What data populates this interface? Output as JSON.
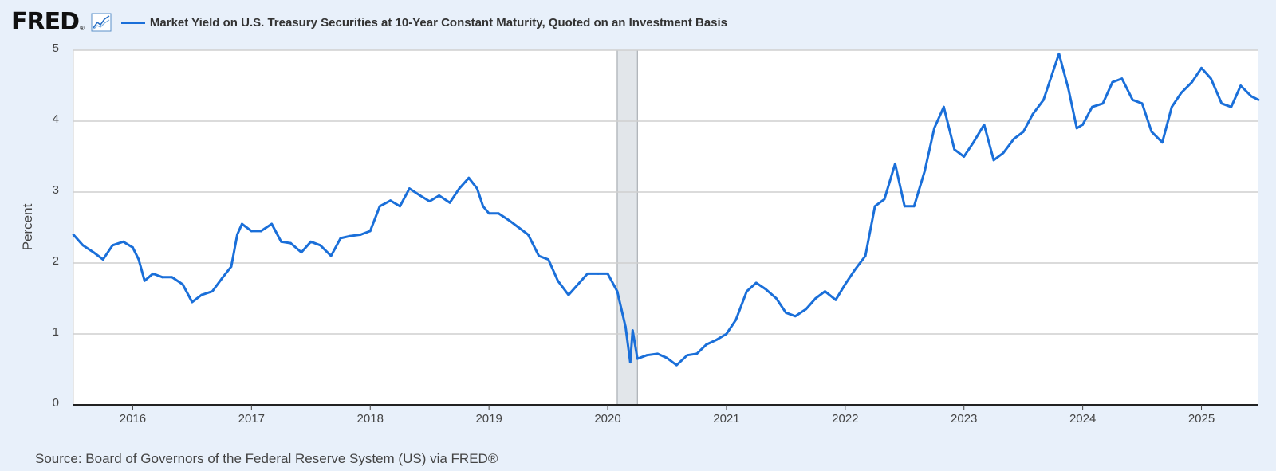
{
  "brand": {
    "logo": "FRED",
    "registered": "®",
    "icon": "line-chart-icon"
  },
  "chart_data": {
    "type": "line",
    "title": "Market Yield on U.S. Treasury Securities at 10-Year Constant Maturity, Quoted on an Investment Basis",
    "xlabel": "",
    "ylabel": "Percent",
    "xlim": [
      2015.5,
      2025.48
    ],
    "ylim": [
      0,
      5
    ],
    "yticks": [
      "0",
      "1",
      "2",
      "3",
      "4",
      "5"
    ],
    "xticks": [
      "2016",
      "2017",
      "2018",
      "2019",
      "2020",
      "2021",
      "2022",
      "2023",
      "2024",
      "2025"
    ],
    "grid": true,
    "legend": "top-left",
    "recession_shading": [
      {
        "start": 2020.08,
        "end": 2020.25
      }
    ],
    "series": [
      {
        "name": "Market Yield on U.S. Treasury Securities at 10-Year Constant Maturity, Quoted on an Investment Basis",
        "color": "#1a6fd9",
        "points": [
          [
            2015.5,
            2.4
          ],
          [
            2015.58,
            2.25
          ],
          [
            2015.67,
            2.15
          ],
          [
            2015.75,
            2.05
          ],
          [
            2015.83,
            2.25
          ],
          [
            2015.92,
            2.3
          ],
          [
            2016.0,
            2.22
          ],
          [
            2016.05,
            2.05
          ],
          [
            2016.1,
            1.75
          ],
          [
            2016.17,
            1.85
          ],
          [
            2016.25,
            1.8
          ],
          [
            2016.33,
            1.8
          ],
          [
            2016.42,
            1.7
          ],
          [
            2016.5,
            1.45
          ],
          [
            2016.58,
            1.55
          ],
          [
            2016.67,
            1.6
          ],
          [
            2016.75,
            1.78
          ],
          [
            2016.83,
            1.95
          ],
          [
            2016.88,
            2.4
          ],
          [
            2016.92,
            2.55
          ],
          [
            2017.0,
            2.45
          ],
          [
            2017.08,
            2.45
          ],
          [
            2017.17,
            2.55
          ],
          [
            2017.25,
            2.3
          ],
          [
            2017.33,
            2.28
          ],
          [
            2017.42,
            2.15
          ],
          [
            2017.5,
            2.3
          ],
          [
            2017.58,
            2.25
          ],
          [
            2017.67,
            2.1
          ],
          [
            2017.75,
            2.35
          ],
          [
            2017.83,
            2.38
          ],
          [
            2017.92,
            2.4
          ],
          [
            2018.0,
            2.45
          ],
          [
            2018.08,
            2.8
          ],
          [
            2018.17,
            2.88
          ],
          [
            2018.25,
            2.8
          ],
          [
            2018.33,
            3.05
          ],
          [
            2018.42,
            2.95
          ],
          [
            2018.5,
            2.87
          ],
          [
            2018.58,
            2.95
          ],
          [
            2018.67,
            2.85
          ],
          [
            2018.75,
            3.05
          ],
          [
            2018.83,
            3.2
          ],
          [
            2018.9,
            3.05
          ],
          [
            2018.95,
            2.8
          ],
          [
            2019.0,
            2.7
          ],
          [
            2019.08,
            2.7
          ],
          [
            2019.17,
            2.6
          ],
          [
            2019.25,
            2.5
          ],
          [
            2019.33,
            2.4
          ],
          [
            2019.42,
            2.1
          ],
          [
            2019.5,
            2.05
          ],
          [
            2019.58,
            1.75
          ],
          [
            2019.67,
            1.55
          ],
          [
            2019.75,
            1.7
          ],
          [
            2019.83,
            1.85
          ],
          [
            2019.92,
            1.85
          ],
          [
            2020.0,
            1.85
          ],
          [
            2020.08,
            1.6
          ],
          [
            2020.15,
            1.1
          ],
          [
            2020.19,
            0.6
          ],
          [
            2020.21,
            1.05
          ],
          [
            2020.25,
            0.65
          ],
          [
            2020.33,
            0.7
          ],
          [
            2020.42,
            0.72
          ],
          [
            2020.5,
            0.66
          ],
          [
            2020.58,
            0.56
          ],
          [
            2020.67,
            0.7
          ],
          [
            2020.75,
            0.72
          ],
          [
            2020.83,
            0.85
          ],
          [
            2020.92,
            0.92
          ],
          [
            2021.0,
            1.0
          ],
          [
            2021.08,
            1.2
          ],
          [
            2021.17,
            1.6
          ],
          [
            2021.25,
            1.72
          ],
          [
            2021.33,
            1.63
          ],
          [
            2021.42,
            1.5
          ],
          [
            2021.5,
            1.3
          ],
          [
            2021.58,
            1.25
          ],
          [
            2021.67,
            1.35
          ],
          [
            2021.75,
            1.5
          ],
          [
            2021.83,
            1.6
          ],
          [
            2021.92,
            1.48
          ],
          [
            2022.0,
            1.7
          ],
          [
            2022.08,
            1.9
          ],
          [
            2022.17,
            2.1
          ],
          [
            2022.25,
            2.8
          ],
          [
            2022.33,
            2.9
          ],
          [
            2022.42,
            3.4
          ],
          [
            2022.5,
            2.8
          ],
          [
            2022.58,
            2.8
          ],
          [
            2022.67,
            3.3
          ],
          [
            2022.75,
            3.9
          ],
          [
            2022.83,
            4.2
          ],
          [
            2022.92,
            3.6
          ],
          [
            2023.0,
            3.5
          ],
          [
            2023.08,
            3.7
          ],
          [
            2023.17,
            3.95
          ],
          [
            2023.25,
            3.45
          ],
          [
            2023.33,
            3.55
          ],
          [
            2023.42,
            3.75
          ],
          [
            2023.5,
            3.85
          ],
          [
            2023.58,
            4.1
          ],
          [
            2023.67,
            4.3
          ],
          [
            2023.75,
            4.7
          ],
          [
            2023.8,
            4.95
          ],
          [
            2023.88,
            4.45
          ],
          [
            2023.95,
            3.9
          ],
          [
            2024.0,
            3.95
          ],
          [
            2024.08,
            4.2
          ],
          [
            2024.17,
            4.25
          ],
          [
            2024.25,
            4.55
          ],
          [
            2024.33,
            4.6
          ],
          [
            2024.42,
            4.3
          ],
          [
            2024.5,
            4.25
          ],
          [
            2024.58,
            3.85
          ],
          [
            2024.67,
            3.7
          ],
          [
            2024.75,
            4.2
          ],
          [
            2024.83,
            4.4
          ],
          [
            2024.92,
            4.55
          ],
          [
            2025.0,
            4.75
          ],
          [
            2025.08,
            4.6
          ],
          [
            2025.17,
            4.25
          ],
          [
            2025.25,
            4.2
          ],
          [
            2025.33,
            4.5
          ],
          [
            2025.42,
            4.35
          ],
          [
            2025.48,
            4.3
          ]
        ]
      }
    ]
  },
  "footer": {
    "source": "Source: Board of Governors of the Federal Reserve System (US) via FRED®"
  }
}
